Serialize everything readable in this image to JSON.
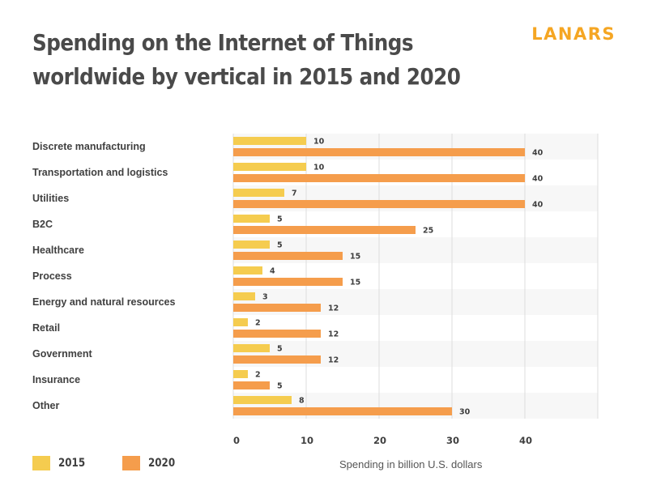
{
  "brand": {
    "name": "LANARS",
    "color": "#f5a623"
  },
  "chart_data": {
    "type": "bar",
    "orientation": "horizontal",
    "title": "Spending on the Internet of Things worldwide by vertical in 2015 and 2020",
    "xlabel": "Spending in billion U.S. dollars",
    "ylabel": "",
    "xlim": [
      0,
      50
    ],
    "xticks": [
      0,
      10,
      20,
      30,
      40
    ],
    "grid": true,
    "legend_position": "bottom-left",
    "categories": [
      "Discrete manufacturing",
      "Transportation and logistics",
      "Utilities",
      "B2C",
      "Healthcare",
      "Process",
      "Energy and natural resources",
      "Retail",
      "Government",
      "Insurance",
      "Other"
    ],
    "series": [
      {
        "name": "2015",
        "color": "#f5cc4f",
        "values": [
          10,
          10,
          7,
          5,
          5,
          4,
          3,
          2,
          5,
          2,
          8
        ]
      },
      {
        "name": "2020",
        "color": "#f59d4c",
        "values": [
          40,
          40,
          40,
          25,
          15,
          15,
          12,
          12,
          12,
          5,
          30
        ]
      }
    ]
  }
}
